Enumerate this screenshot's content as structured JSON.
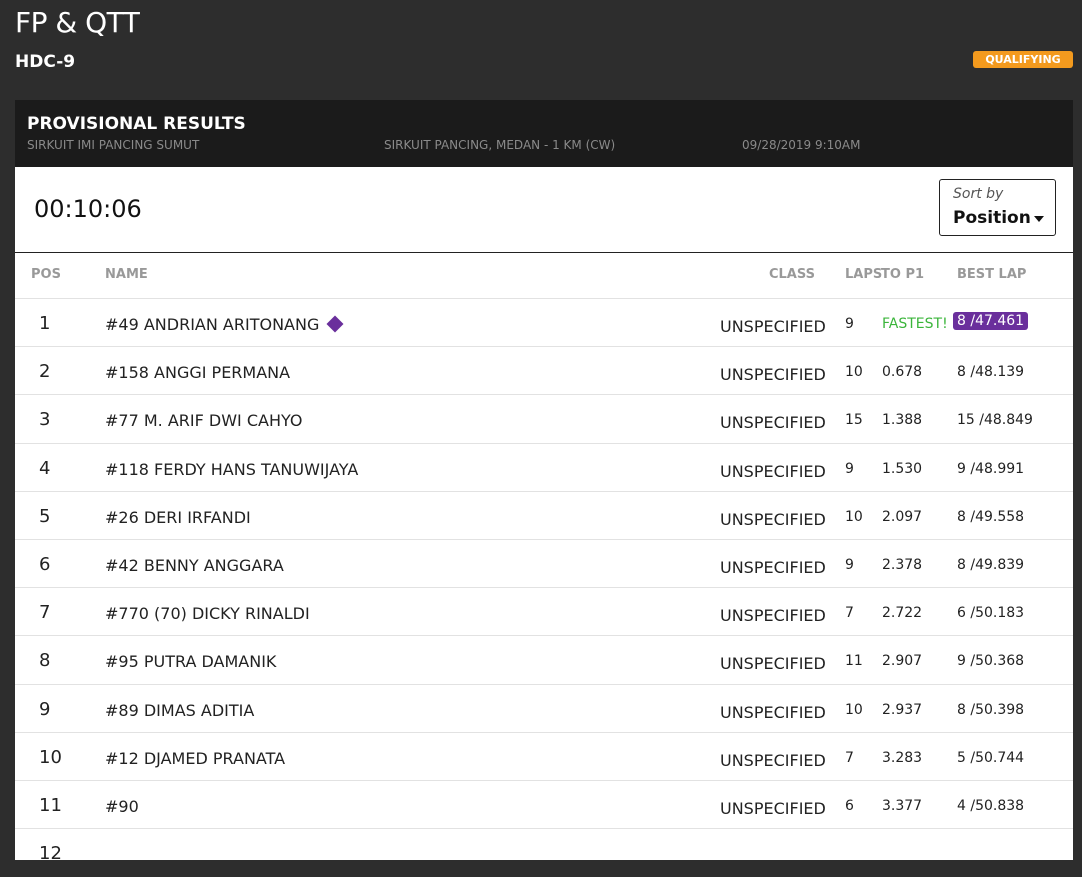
{
  "header": {
    "title": "FP & QTT",
    "subtitle": "HDC-9",
    "badge": "QUALIFYING"
  },
  "panel": {
    "title": "PROVISIONAL RESULTS",
    "meta": [
      "SIRKUIT IMI PANCING SUMUT",
      "SIRKUIT PANCING, MEDAN - 1 KM (CW)",
      "09/28/2019 9:10AM"
    ]
  },
  "timer": "00:10:06",
  "sort": {
    "label": "Sort by",
    "value": "Position"
  },
  "table": {
    "columns": [
      "POS",
      "NAME",
      "CLASS",
      "LAPS",
      "TO P1",
      "BEST LAP"
    ],
    "rows": [
      {
        "pos": "1",
        "name": "#49 ANDRIAN ARITONANG",
        "class": "UNSPECIFIED",
        "laps": "9",
        "gap": "FASTEST!",
        "best": "8 /47.461",
        "fastest": true
      },
      {
        "pos": "2",
        "name": "#158 ANGGI PERMANA",
        "class": "UNSPECIFIED",
        "laps": "10",
        "gap": "0.678",
        "best": "8 /48.139"
      },
      {
        "pos": "3",
        "name": "#77 M. ARIF DWI CAHYO",
        "class": "UNSPECIFIED",
        "laps": "15",
        "gap": "1.388",
        "best": "15 /48.849"
      },
      {
        "pos": "4",
        "name": "#118 FERDY HANS TANUWIJAYA",
        "class": "UNSPECIFIED",
        "laps": "9",
        "gap": "1.530",
        "best": "9 /48.991"
      },
      {
        "pos": "5",
        "name": "#26 DERI IRFANDI",
        "class": "UNSPECIFIED",
        "laps": "10",
        "gap": "2.097",
        "best": "8 /49.558"
      },
      {
        "pos": "6",
        "name": "#42 BENNY ANGGARA",
        "class": "UNSPECIFIED",
        "laps": "9",
        "gap": "2.378",
        "best": "8 /49.839"
      },
      {
        "pos": "7",
        "name": "#770 (70) DICKY RINALDI",
        "class": "UNSPECIFIED",
        "laps": "7",
        "gap": "2.722",
        "best": "6 /50.183"
      },
      {
        "pos": "8",
        "name": "#95 PUTRA DAMANIK",
        "class": "UNSPECIFIED",
        "laps": "11",
        "gap": "2.907",
        "best": "9 /50.368"
      },
      {
        "pos": "9",
        "name": "#89 DIMAS ADITIA",
        "class": "UNSPECIFIED",
        "laps": "10",
        "gap": "2.937",
        "best": "8 /50.398"
      },
      {
        "pos": "10",
        "name": "#12 DJAMED PRANATA",
        "class": "UNSPECIFIED",
        "laps": "7",
        "gap": "3.283",
        "best": "5 /50.744"
      },
      {
        "pos": "11",
        "name": "#90",
        "class": "UNSPECIFIED",
        "laps": "6",
        "gap": "3.377",
        "best": "4 /50.838"
      },
      {
        "pos": "12"
      }
    ]
  }
}
